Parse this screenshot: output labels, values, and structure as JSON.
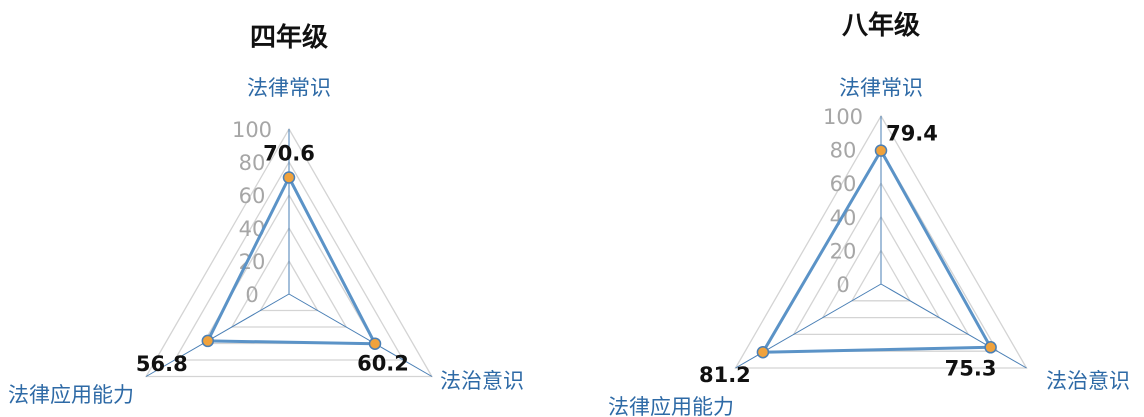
{
  "chart_data": [
    {
      "type": "radar",
      "title": "四年级",
      "categories": [
        "法律常识",
        "法治意识",
        "法律应用能力"
      ],
      "values": [
        70.6,
        60.2,
        56.8
      ],
      "value_labels": [
        "70.6",
        "60.2",
        "56.8"
      ],
      "ticks": [
        "0",
        "20",
        "40",
        "60",
        "80",
        "100"
      ],
      "rlim": [
        0,
        100
      ],
      "grid": true
    },
    {
      "type": "radar",
      "title": "八年级",
      "categories": [
        "法律常识",
        "法治意识",
        "法律应用能力"
      ],
      "values": [
        79.4,
        75.3,
        81.2
      ],
      "value_labels": [
        "79.4",
        "75.3",
        "81.2"
      ],
      "ticks": [
        "0",
        "20",
        "40",
        "60",
        "80",
        "100"
      ],
      "rlim": [
        0,
        100
      ],
      "grid": true
    }
  ],
  "colors": {
    "series_line": "#5b93c7",
    "marker_fill": "#f0a23c",
    "marker_stroke": "#4a7fb5",
    "grid": "#d4d4d4",
    "axis": "#4a7fb5",
    "category_text": "#2e6aa6",
    "tick_text": "#a6a6a6"
  }
}
